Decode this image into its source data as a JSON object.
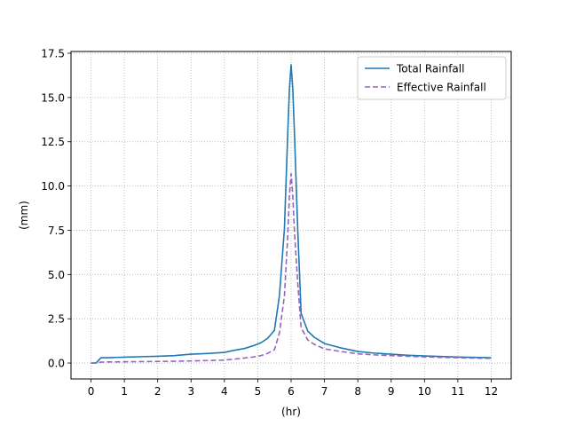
{
  "chart_data": {
    "type": "line",
    "title": "",
    "xlabel": "(hr)",
    "ylabel": "(mm)",
    "xlim": [
      -0.6,
      12.6
    ],
    "ylim": [
      -0.9,
      17.6
    ],
    "xticks": [
      0,
      1,
      2,
      3,
      4,
      5,
      6,
      7,
      8,
      9,
      10,
      11,
      12
    ],
    "xtick_labels": [
      "0",
      "1",
      "2",
      "3",
      "4",
      "5",
      "6",
      "7",
      "8",
      "9",
      "10",
      "11",
      "12"
    ],
    "yticks": [
      0.0,
      2.5,
      5.0,
      7.5,
      10.0,
      12.5,
      15.0,
      17.5
    ],
    "ytick_labels": [
      "0.0",
      "2.5",
      "5.0",
      "7.5",
      "10.0",
      "12.5",
      "15.0",
      "17.5"
    ],
    "grid": true,
    "legend_position": "top-right",
    "series": [
      {
        "name": "Total Rainfall",
        "color": "#1f77b4",
        "style": "solid",
        "x": [
          0,
          0.15,
          0.3,
          0.5,
          1.0,
          1.5,
          2.0,
          2.5,
          3.0,
          3.5,
          4.0,
          4.3,
          4.6,
          4.9,
          5.1,
          5.3,
          5.5,
          5.65,
          5.8,
          5.9,
          5.95,
          6.0,
          6.05,
          6.1,
          6.2,
          6.3,
          6.5,
          6.7,
          7.0,
          7.5,
          8.0,
          8.5,
          9.0,
          9.5,
          10.0,
          10.5,
          11.0,
          11.5,
          12.0
        ],
        "y": [
          0.0,
          0.0,
          0.3,
          0.3,
          0.33,
          0.36,
          0.38,
          0.42,
          0.5,
          0.54,
          0.6,
          0.72,
          0.82,
          1.0,
          1.15,
          1.4,
          1.85,
          3.8,
          7.6,
          13.0,
          15.5,
          16.85,
          15.5,
          13.0,
          7.5,
          2.8,
          1.8,
          1.45,
          1.1,
          0.85,
          0.65,
          0.56,
          0.5,
          0.44,
          0.4,
          0.37,
          0.34,
          0.32,
          0.3
        ]
      },
      {
        "name": "Effective Rainfall",
        "color": "#9467bd",
        "style": "dashed",
        "x": [
          0,
          0.15,
          0.3,
          0.5,
          1.0,
          1.5,
          2.0,
          2.5,
          3.0,
          3.5,
          4.0,
          4.3,
          4.6,
          4.9,
          5.1,
          5.3,
          5.5,
          5.65,
          5.8,
          5.9,
          5.95,
          6.0,
          6.05,
          6.1,
          6.2,
          6.3,
          6.5,
          6.7,
          7.0,
          7.5,
          8.0,
          8.5,
          9.0,
          9.5,
          10.0,
          10.5,
          11.0,
          11.5,
          12.0
        ],
        "y": [
          0.0,
          0.0,
          0.05,
          0.06,
          0.07,
          0.08,
          0.09,
          0.1,
          0.12,
          0.14,
          0.17,
          0.22,
          0.28,
          0.35,
          0.42,
          0.55,
          0.75,
          1.7,
          3.8,
          7.2,
          9.5,
          10.7,
          9.5,
          7.4,
          4.5,
          2.0,
          1.3,
          1.05,
          0.8,
          0.65,
          0.52,
          0.46,
          0.42,
          0.38,
          0.35,
          0.32,
          0.3,
          0.28,
          0.26
        ]
      }
    ]
  }
}
